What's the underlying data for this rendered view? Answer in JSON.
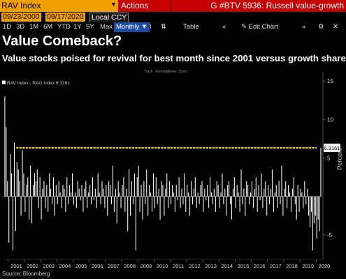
{
  "toolbar": {
    "ticker": "RAV Index",
    "actions_label": "Actions",
    "story_title": "G #BTV 5936: Russell value-growth"
  },
  "date_bar": {
    "start_date": "09/23/2000",
    "end_date": "09/17/2020",
    "currency": "Local CCY"
  },
  "range_bar": {
    "ranges": [
      "1D",
      "3D",
      "1M",
      "6M",
      "YTD",
      "1Y",
      "5Y",
      "Max"
    ],
    "frequency": "Monthly",
    "table_label": "Table",
    "edit_chart_label": "Edit Chart"
  },
  "headline": "Value Comeback?",
  "subheadline": "Value stocks poised for revival for best month since 2001 versus growth shares",
  "legend_tools": [
    "Track",
    "Annotate",
    "News",
    "Zoom"
  ],
  "chart_legend_label": "RAV Index - RAG Index 6.3161",
  "footer": "Source: Bloomberg",
  "colors": {
    "ticker_bg": "#f0a000",
    "actions_bg": "#c40000",
    "frequency_bg": "#1e4ba0",
    "reference_line": "#ffd200",
    "last_value_bg": "#ffffff"
  },
  "chart_data": {
    "type": "bar",
    "ylabel": "Percent",
    "ylim": [
      -8,
      16
    ],
    "y_ticks": [
      15,
      10,
      5,
      -5
    ],
    "x_ticks": [
      "2001",
      "2002",
      "2003",
      "2004",
      "2005",
      "2006",
      "2007",
      "2008",
      "2009",
      "2010",
      "2011",
      "2012",
      "2013",
      "2014",
      "2015",
      "2016",
      "2017",
      "2018",
      "2019",
      "2020"
    ],
    "reference_line_value": 6.3161,
    "last_value_label": "6.3161",
    "grid": false,
    "series": [
      {
        "values": [
          13.0,
          9.0,
          2.0,
          -6.0,
          5.5,
          3.0,
          -7.0,
          7.0,
          -4.5,
          4.5,
          3.5,
          2.0,
          -2.5,
          6.0,
          3.0,
          -2.0,
          1.5,
          2.5,
          -3.0,
          4.0,
          -3.5,
          1.5,
          3.0,
          2.0,
          3.5,
          -1.5,
          2.5,
          -3.0,
          1.0,
          2.0,
          -1.5,
          1.5,
          -2.0,
          3.0,
          1.0,
          -1.0,
          2.5,
          -2.5,
          1.5,
          -1.0,
          2.0,
          0.5,
          -1.5,
          1.5,
          1.0,
          -2.0,
          2.5,
          -1.0,
          1.5,
          0.5,
          3.0,
          -1.0,
          0.5,
          -1.5,
          2.0,
          1.0,
          -0.5,
          1.5,
          -2.0,
          1.0,
          2.0,
          -1.5,
          0.5,
          1.5,
          -1.0,
          2.5,
          -0.5,
          1.0,
          -1.5,
          3.0,
          0.5,
          -1.0,
          2.0,
          1.0,
          -1.5,
          1.5,
          -2.5,
          2.0,
          1.5,
          -1.0,
          4.0,
          -2.0,
          1.0,
          -3.5,
          2.0,
          0.5,
          -1.5,
          1.5,
          2.5,
          -2.0,
          1.0,
          -4.5,
          3.5,
          -2.5,
          2.0,
          -1.0,
          3.0,
          -7.0,
          2.5,
          4.0,
          -2.0,
          1.5,
          -3.0,
          2.0,
          -1.0,
          3.5,
          -2.5,
          1.5,
          0.5,
          -2.0,
          3.0,
          -1.5,
          2.5,
          -1.0,
          1.0,
          -3.0,
          2.0,
          1.5,
          -2.5,
          1.0,
          3.0,
          -1.5,
          2.0,
          -1.0,
          1.5,
          0.5,
          -2.0,
          1.5,
          -0.5,
          2.5,
          -1.5,
          1.0,
          -1.0,
          3.0,
          -2.0,
          1.5,
          0.5,
          -2.5,
          2.0,
          -1.0,
          1.0,
          2.5,
          -1.5,
          0.5,
          -1.0,
          1.5,
          2.0,
          -2.0,
          1.0,
          -0.5,
          1.5,
          -1.5,
          2.5,
          0.5,
          -1.0,
          1.0,
          -2.0,
          2.0,
          1.5,
          -1.5,
          0.5,
          3.0,
          -1.0,
          1.0,
          -2.5,
          1.5,
          2.0,
          -1.0,
          -3.0,
          1.0,
          2.5,
          -1.5,
          1.5,
          0.5,
          -2.0,
          3.5,
          -1.0,
          1.0,
          -2.5,
          2.0,
          1.5,
          -1.0,
          0.5,
          2.0,
          -1.5,
          1.0,
          2.5,
          -2.0,
          1.5,
          -0.5,
          3.0,
          -1.5,
          1.0,
          2.0,
          -2.5,
          1.5,
          -1.0,
          1.0,
          3.5,
          -2.0,
          0.5,
          1.5,
          -1.5,
          2.0,
          -1.0,
          4.0,
          -2.5,
          1.0,
          2.0,
          -1.5,
          1.5,
          0.5,
          -2.0,
          1.0,
          2.5,
          -1.0,
          -3.0,
          1.5,
          -2.0,
          1.0,
          0.5,
          -1.5,
          2.0,
          -1.0,
          1.0,
          -2.5,
          -4.0,
          -2.0,
          -7.0,
          -3.5,
          -2.5,
          -5.5,
          -3.0,
          -4.5,
          6.3161
        ]
      }
    ]
  }
}
